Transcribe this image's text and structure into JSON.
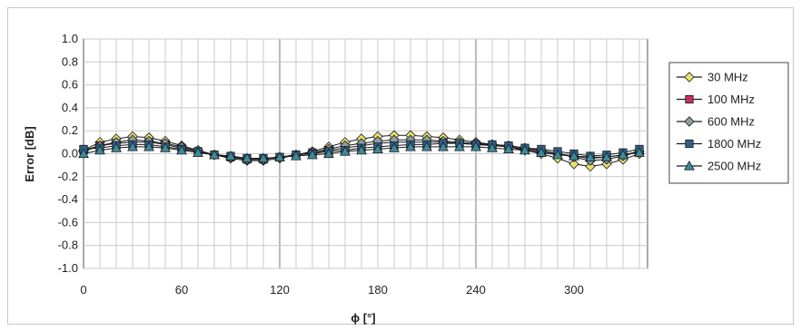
{
  "chart_data": {
    "type": "line",
    "title": "",
    "xlabel": "ϕ [°]",
    "ylabel": "Error [dB]",
    "xlim": [
      0,
      345
    ],
    "ylim": [
      -1.0,
      1.0
    ],
    "xticks": [
      0,
      60,
      120,
      180,
      240,
      300
    ],
    "xtick_labels": [
      "0",
      "60",
      "120",
      "180",
      "240",
      "300"
    ],
    "yticks": [
      -1.0,
      -0.8,
      -0.6,
      -0.4,
      -0.2,
      0.0,
      0.2,
      0.4,
      0.6,
      0.8,
      1.0
    ],
    "ytick_labels": [
      "-1.0",
      "-0.8",
      "-0.6",
      "-0.4",
      "-0.2",
      "0.0",
      "0.2",
      "0.4",
      "0.6",
      "0.8",
      "1.0"
    ],
    "grid": true,
    "legend_position": "right",
    "x": [
      0,
      10,
      20,
      30,
      40,
      50,
      60,
      70,
      80,
      90,
      100,
      110,
      120,
      130,
      140,
      150,
      160,
      170,
      180,
      190,
      200,
      210,
      220,
      230,
      240,
      250,
      260,
      270,
      280,
      290,
      300,
      310,
      320,
      330,
      340
    ],
    "series": [
      {
        "name": "30 MHz",
        "marker": "diamond",
        "color": "#e8e070",
        "values": [
          0.03,
          0.1,
          0.13,
          0.15,
          0.14,
          0.11,
          0.07,
          0.03,
          -0.01,
          -0.04,
          -0.06,
          -0.06,
          -0.04,
          -0.01,
          0.02,
          0.06,
          0.1,
          0.13,
          0.15,
          0.16,
          0.16,
          0.15,
          0.14,
          0.12,
          0.1,
          0.08,
          0.06,
          0.03,
          0.0,
          -0.04,
          -0.09,
          -0.11,
          -0.09,
          -0.05,
          0.0
        ]
      },
      {
        "name": "100 MHz",
        "marker": "square",
        "color": "#c03060",
        "values": [
          0.03,
          0.07,
          0.09,
          0.1,
          0.1,
          0.08,
          0.05,
          0.02,
          -0.01,
          -0.03,
          -0.05,
          -0.05,
          -0.03,
          -0.01,
          0.01,
          0.03,
          0.05,
          0.07,
          0.09,
          0.1,
          0.1,
          0.1,
          0.1,
          0.09,
          0.08,
          0.07,
          0.06,
          0.04,
          0.02,
          0.0,
          -0.02,
          -0.04,
          -0.03,
          -0.01,
          0.02
        ]
      },
      {
        "name": "600 MHz",
        "marker": "diamond",
        "color": "#8aa0a0",
        "values": [
          0.02,
          0.07,
          0.1,
          0.12,
          0.11,
          0.09,
          0.06,
          0.03,
          -0.01,
          -0.03,
          -0.05,
          -0.05,
          -0.03,
          -0.01,
          0.01,
          0.04,
          0.07,
          0.09,
          0.11,
          0.12,
          0.12,
          0.12,
          0.11,
          0.1,
          0.09,
          0.08,
          0.07,
          0.05,
          0.03,
          0.0,
          -0.03,
          -0.06,
          -0.05,
          -0.02,
          0.02
        ]
      },
      {
        "name": "1800 MHz",
        "marker": "square",
        "color": "#2f5f8a",
        "values": [
          0.04,
          0.05,
          0.07,
          0.08,
          0.08,
          0.06,
          0.04,
          0.02,
          -0.01,
          -0.02,
          -0.04,
          -0.04,
          -0.03,
          -0.01,
          0.0,
          0.02,
          0.03,
          0.05,
          0.06,
          0.07,
          0.08,
          0.08,
          0.09,
          0.09,
          0.08,
          0.08,
          0.07,
          0.05,
          0.04,
          0.02,
          0.0,
          -0.02,
          -0.01,
          0.01,
          0.04
        ]
      },
      {
        "name": "2500 MHz",
        "marker": "triangle",
        "color": "#3e8a99",
        "values": [
          0.0,
          0.03,
          0.05,
          0.06,
          0.06,
          0.05,
          0.03,
          0.01,
          -0.01,
          -0.02,
          -0.04,
          -0.04,
          -0.03,
          -0.02,
          -0.01,
          0.0,
          0.02,
          0.03,
          0.04,
          0.05,
          0.06,
          0.06,
          0.06,
          0.06,
          0.06,
          0.05,
          0.04,
          0.03,
          0.01,
          -0.01,
          -0.02,
          -0.03,
          -0.03,
          -0.01,
          0.01
        ]
      }
    ]
  }
}
